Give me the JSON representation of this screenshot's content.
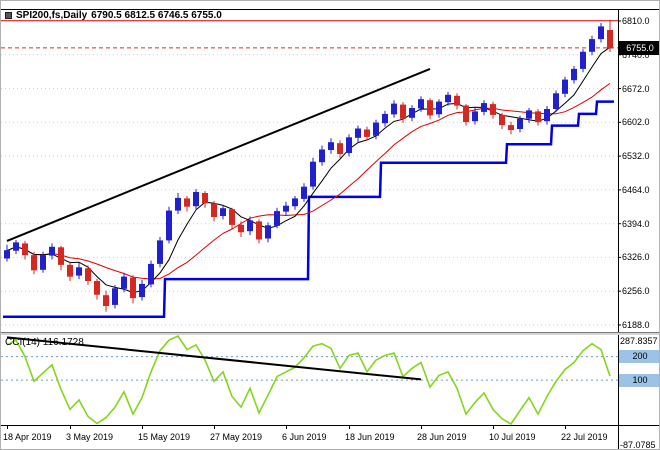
{
  "header": {
    "symbol": "SPI200,fs,Daily",
    "ohlc": "6790.5 6812.5 6746.5 6755.0"
  },
  "colors": {
    "bull": "#2020CC",
    "bear": "#D62822",
    "ma_fast": "#000000",
    "ma_slow": "#E00000",
    "step_line": "#0000E6",
    "trendline": "#000000",
    "cci_line": "#84D61C",
    "cci_level": "#6F9BC4",
    "grid": "#CFCFCF",
    "resistance": "#E00000",
    "price_line": "#CC3333",
    "axis": "#000000",
    "badge_bg": "#9CC3E5",
    "price_badge_bg": "#000000"
  },
  "chart_data": {
    "type": "candlestick",
    "title": "SPI200,fs Daily with CCI(14) sub-window",
    "price_axis_labels": [
      "6810.0",
      "6740.0",
      "6672.0",
      "6602.0",
      "6532.0",
      "6464.0",
      "6394.0",
      "6326.0",
      "6256.0",
      "6188.0"
    ],
    "ylim": [
      6188.0,
      6810.0
    ],
    "current_price": "6755.0",
    "resistance_line": 6810.5,
    "time_labels": [
      {
        "text": "18 Apr 2019",
        "bar": 0
      },
      {
        "text": "3 May 2019",
        "bar": 7
      },
      {
        "text": "15 May 2019",
        "bar": 15
      },
      {
        "text": "27 May 2019",
        "bar": 23
      },
      {
        "text": "6 Jun 2019",
        "bar": 31
      },
      {
        "text": "18 Jun 2019",
        "bar": 38
      },
      {
        "text": "28 Jun 2019",
        "bar": 46
      },
      {
        "text": "10 Jul 2019",
        "bar": 54
      },
      {
        "text": "22 Jul 2019",
        "bar": 62
      }
    ],
    "candles": [
      [
        6325,
        6352,
        6318,
        6340
      ],
      [
        6341,
        6362,
        6333,
        6356
      ],
      [
        6354,
        6360,
        6322,
        6332
      ],
      [
        6330,
        6338,
        6292,
        6301
      ],
      [
        6302,
        6338,
        6295,
        6330
      ],
      [
        6331,
        6355,
        6322,
        6347
      ],
      [
        6346,
        6350,
        6300,
        6312
      ],
      [
        6310,
        6318,
        6278,
        6288
      ],
      [
        6290,
        6315,
        6282,
        6305
      ],
      [
        6303,
        6310,
        6270,
        6279
      ],
      [
        6277,
        6283,
        6240,
        6251
      ],
      [
        6248,
        6258,
        6215,
        6228
      ],
      [
        6230,
        6270,
        6222,
        6262
      ],
      [
        6263,
        6295,
        6255,
        6286
      ],
      [
        6284,
        6290,
        6232,
        6244
      ],
      [
        6246,
        6280,
        6238,
        6271
      ],
      [
        6272,
        6320,
        6265,
        6312
      ],
      [
        6314,
        6368,
        6306,
        6360
      ],
      [
        6362,
        6430,
        6355,
        6421
      ],
      [
        6423,
        6458,
        6415,
        6447
      ],
      [
        6446,
        6452,
        6420,
        6431
      ],
      [
        6432,
        6466,
        6425,
        6459
      ],
      [
        6457,
        6462,
        6428,
        6438
      ],
      [
        6436,
        6442,
        6400,
        6410
      ],
      [
        6412,
        6434,
        6404,
        6426
      ],
      [
        6424,
        6428,
        6385,
        6394
      ],
      [
        6392,
        6400,
        6368,
        6379
      ],
      [
        6381,
        6410,
        6372,
        6401
      ],
      [
        6399,
        6404,
        6355,
        6364
      ],
      [
        6366,
        6398,
        6357,
        6391
      ],
      [
        6392,
        6428,
        6386,
        6420
      ],
      [
        6421,
        6440,
        6412,
        6431
      ],
      [
        6432,
        6452,
        6424,
        6446
      ],
      [
        6447,
        6478,
        6440,
        6470
      ],
      [
        6472,
        6530,
        6465,
        6521
      ],
      [
        6522,
        6555,
        6514,
        6546
      ],
      [
        6547,
        6570,
        6538,
        6561
      ],
      [
        6559,
        6566,
        6530,
        6539
      ],
      [
        6541,
        6578,
        6533,
        6571
      ],
      [
        6572,
        6596,
        6562,
        6589
      ],
      [
        6587,
        6594,
        6565,
        6574
      ],
      [
        6576,
        6608,
        6568,
        6601
      ],
      [
        6602,
        6626,
        6594,
        6619
      ],
      [
        6620,
        6648,
        6612,
        6640
      ],
      [
        6638,
        6644,
        6602,
        6611
      ],
      [
        6613,
        6638,
        6605,
        6631
      ],
      [
        6632,
        6656,
        6624,
        6649
      ],
      [
        6647,
        6652,
        6609,
        6618
      ],
      [
        6620,
        6650,
        6612,
        6644
      ],
      [
        6645,
        6665,
        6637,
        6658
      ],
      [
        6656,
        6662,
        6629,
        6638
      ],
      [
        6636,
        6640,
        6596,
        6604
      ],
      [
        6606,
        6632,
        6598,
        6624
      ],
      [
        6625,
        6648,
        6617,
        6641
      ],
      [
        6639,
        6645,
        6610,
        6619
      ],
      [
        6617,
        6622,
        6589,
        6598
      ],
      [
        6596,
        6604,
        6578,
        6588
      ],
      [
        6590,
        6616,
        6582,
        6609
      ],
      [
        6611,
        6632,
        6602,
        6626
      ],
      [
        6624,
        6630,
        6596,
        6604
      ],
      [
        6606,
        6636,
        6598,
        6629
      ],
      [
        6631,
        6668,
        6623,
        6661
      ],
      [
        6662,
        6696,
        6654,
        6689
      ],
      [
        6690,
        6718,
        6682,
        6711
      ],
      [
        6713,
        6752,
        6705,
        6746
      ],
      [
        6748,
        6780,
        6740,
        6772
      ],
      [
        6774,
        6806,
        6766,
        6798
      ],
      [
        6790.5,
        6812.5,
        6746.5,
        6755
      ]
    ],
    "ma_fast_period": 5,
    "ma_slow_period": 12,
    "step_line_segments": [
      [
        0,
        17,
        6205
      ],
      [
        18,
        33,
        6282
      ],
      [
        34,
        41,
        6450
      ],
      [
        42,
        55,
        6520
      ],
      [
        56,
        60,
        6558
      ],
      [
        61,
        63,
        6596
      ],
      [
        64,
        65,
        6620
      ],
      [
        66,
        67,
        6645
      ]
    ],
    "trendline": {
      "from": [
        0,
        6360
      ],
      "to": [
        47,
        6712
      ]
    },
    "cci": {
      "label": "CCI(14) 116.1728",
      "period": 14,
      "last_value": 116.1728,
      "scale_max": "287.8357",
      "scale_min": "-87.0785",
      "levels": [
        "200",
        "100"
      ],
      "values": [
        250,
        270,
        200,
        95,
        130,
        165,
        60,
        -25,
        15,
        -55,
        -85,
        -60,
        -15,
        50,
        -45,
        25,
        135,
        225,
        270,
        287.8357,
        230,
        250,
        185,
        95,
        135,
        30,
        -15,
        65,
        -40,
        35,
        115,
        135,
        155,
        195,
        245,
        255,
        235,
        150,
        205,
        215,
        135,
        185,
        205,
        215,
        115,
        150,
        175,
        70,
        120,
        135,
        65,
        -45,
        5,
        45,
        -25,
        -65,
        -87.0785,
        -30,
        25,
        -45,
        30,
        95,
        145,
        175,
        225,
        255,
        230,
        116.1728
      ],
      "trendline": {
        "from": [
          0,
          282
        ],
        "to": [
          46,
          103
        ]
      }
    }
  }
}
